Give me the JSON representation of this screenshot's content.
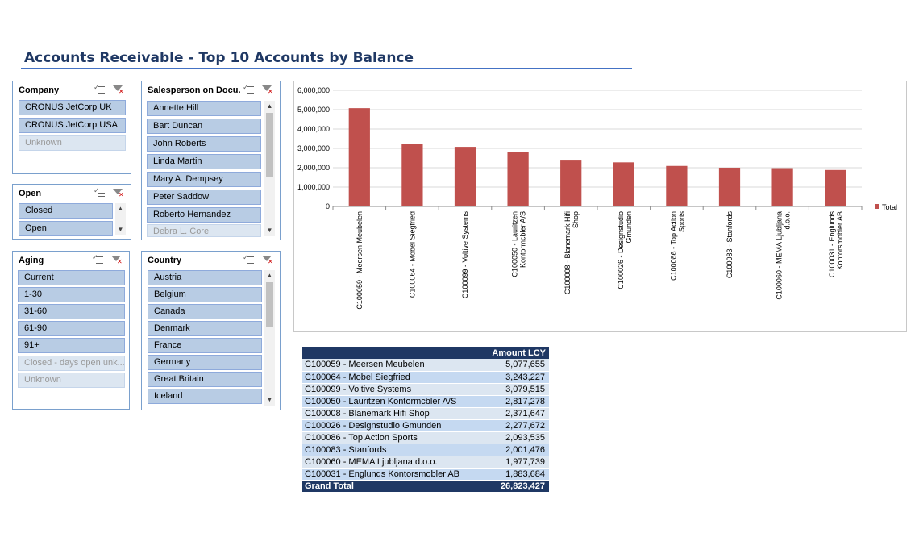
{
  "report": {
    "title": "Accounts Receivable - Top 10 Accounts by Balance"
  },
  "slicers": {
    "company": {
      "title": "Company",
      "items": [
        {
          "label": "CRONUS JetCorp UK",
          "dim": false
        },
        {
          "label": "CRONUS JetCorp USA",
          "dim": false
        },
        {
          "label": "Unknown",
          "dim": true
        }
      ]
    },
    "salesperson": {
      "title": "Salesperson on Docu...",
      "items": [
        {
          "label": "Annette Hill",
          "dim": false
        },
        {
          "label": "Bart Duncan",
          "dim": false
        },
        {
          "label": "John Roberts",
          "dim": false
        },
        {
          "label": "Linda Martin",
          "dim": false
        },
        {
          "label": "Mary A. Dempsey",
          "dim": false
        },
        {
          "label": "Peter Saddow",
          "dim": false
        },
        {
          "label": "Roberto Hernandez",
          "dim": false
        },
        {
          "label": "Debra L. Core",
          "dim": true
        }
      ]
    },
    "open": {
      "title": "Open",
      "items": [
        {
          "label": "Closed",
          "dim": false
        },
        {
          "label": "Open",
          "dim": false
        }
      ]
    },
    "aging": {
      "title": "Aging",
      "items": [
        {
          "label": "Current",
          "dim": false
        },
        {
          "label": "1-30",
          "dim": false
        },
        {
          "label": "31-60",
          "dim": false
        },
        {
          "label": "61-90",
          "dim": false
        },
        {
          "label": "91+",
          "dim": false
        },
        {
          "label": "Closed - days open unk...",
          "dim": true
        },
        {
          "label": "Unknown",
          "dim": true
        }
      ]
    },
    "country": {
      "title": "Country",
      "items": [
        {
          "label": "Austria",
          "dim": false
        },
        {
          "label": "Belgium",
          "dim": false
        },
        {
          "label": "Canada",
          "dim": false
        },
        {
          "label": "Denmark",
          "dim": false
        },
        {
          "label": "France",
          "dim": false
        },
        {
          "label": "Germany",
          "dim": false
        },
        {
          "label": "Great Britain",
          "dim": false
        },
        {
          "label": "Iceland",
          "dim": false
        }
      ]
    }
  },
  "icons": {
    "multi_select": "multi-select-icon",
    "clear_filter": "clear-filter-icon"
  },
  "colors": {
    "bar": "#c0504d",
    "header": "#1f3864",
    "accent": "#4472c4"
  },
  "chart_data": {
    "type": "bar",
    "categories": [
      "C100059 - Meersen Meubelen",
      "C100064 - Mobel Siegfried",
      "C100099 - Voltive Systems",
      "C100050 - Lauritzen Kontormcbler A/S",
      "C100008 - Blanemark Hifi Shop",
      "C100026 - Designstudio Gmunden",
      "C100086 - Top Action Sports",
      "C100083 - Stanfords",
      "C100060 - MEMA Ljubljana d.o.o.",
      "C100031 - Englunds Kontorsmobler AB"
    ],
    "series": [
      {
        "name": "Total",
        "values": [
          5077655,
          3243227,
          3079515,
          2817278,
          2371647,
          2277672,
          2093535,
          2001476,
          1977739,
          1883684
        ]
      }
    ],
    "ylim": [
      0,
      6000000
    ],
    "yticks": [
      "0",
      "1,000,000",
      "2,000,000",
      "3,000,000",
      "4,000,000",
      "5,000,000",
      "6,000,000"
    ],
    "grid": true,
    "legend": "right"
  },
  "pivot": {
    "header": "Amount LCY",
    "rows": [
      {
        "account": "C100059 - Meersen Meubelen",
        "amount": "5,077,655"
      },
      {
        "account": "C100064 - Mobel Siegfried",
        "amount": "3,243,227"
      },
      {
        "account": "C100099 - Voltive Systems",
        "amount": "3,079,515"
      },
      {
        "account": "C100050 - Lauritzen Kontormcbler A/S",
        "amount": "2,817,278"
      },
      {
        "account": "C100008 - Blanemark Hifi Shop",
        "amount": "2,371,647"
      },
      {
        "account": "C100026 - Designstudio Gmunden",
        "amount": "2,277,672"
      },
      {
        "account": "C100086 - Top Action Sports",
        "amount": "2,093,535"
      },
      {
        "account": "C100083 - Stanfords",
        "amount": "2,001,476"
      },
      {
        "account": "C100060 - MEMA Ljubljana d.o.o.",
        "amount": "1,977,739"
      },
      {
        "account": "C100031 - Englunds Kontorsmobler AB",
        "amount": "1,883,684"
      }
    ],
    "total_label": "Grand Total",
    "total_amount": "26,823,427"
  }
}
